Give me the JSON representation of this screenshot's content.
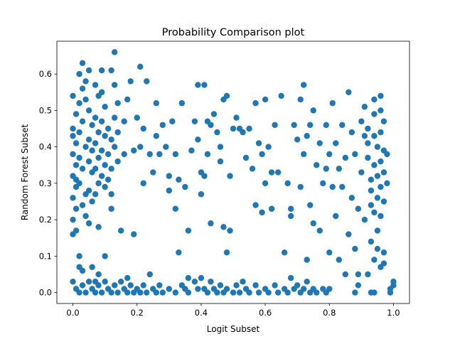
{
  "chart_data": {
    "type": "scatter",
    "title": "Probability Comparison plot",
    "xlabel": "Logit Subset",
    "ylabel": "Random Forest Subset",
    "xlim": [
      -0.05,
      1.05
    ],
    "ylim": [
      -0.03,
      0.69
    ],
    "xticks": [
      "0.0",
      "0.2",
      "0.4",
      "0.6",
      "0.8",
      "1.0"
    ],
    "yticks": [
      "0.0",
      "0.1",
      "0.2",
      "0.3",
      "0.4",
      "0.5",
      "0.6"
    ],
    "grid": false,
    "marker_color": "#1f77b4",
    "series": [
      {
        "points": [
          [
            0.0,
            0.54
          ],
          [
            0.01,
            0.49
          ],
          [
            0.0,
            0.45
          ],
          [
            0.01,
            0.41
          ],
          [
            0.0,
            0.38
          ],
          [
            0.01,
            0.35
          ],
          [
            0.0,
            0.32
          ],
          [
            0.01,
            0.29
          ],
          [
            0.0,
            0.26
          ],
          [
            0.01,
            0.23
          ],
          [
            0.0,
            0.2
          ],
          [
            0.01,
            0.17
          ],
          [
            0.0,
            0.16
          ],
          [
            0.0,
            0.43
          ],
          [
            0.01,
            0.31
          ],
          [
            0.02,
            0.6
          ],
          [
            0.03,
            0.63
          ],
          [
            0.03,
            0.56
          ],
          [
            0.02,
            0.52
          ],
          [
            0.04,
            0.58
          ],
          [
            0.03,
            0.47
          ],
          [
            0.02,
            0.44
          ],
          [
            0.04,
            0.4
          ],
          [
            0.02,
            0.37
          ],
          [
            0.03,
            0.34
          ],
          [
            0.02,
            0.3
          ],
          [
            0.04,
            0.27
          ],
          [
            0.03,
            0.24
          ],
          [
            0.05,
            0.61
          ],
          [
            0.04,
            0.53
          ],
          [
            0.05,
            0.5
          ],
          [
            0.06,
            0.46
          ],
          [
            0.05,
            0.42
          ],
          [
            0.06,
            0.39
          ],
          [
            0.05,
            0.36
          ],
          [
            0.06,
            0.33
          ],
          [
            0.05,
            0.28
          ],
          [
            0.06,
            0.25
          ],
          [
            0.04,
            0.21
          ],
          [
            0.05,
            0.19
          ],
          [
            0.07,
            0.57
          ],
          [
            0.08,
            0.54
          ],
          [
            0.07,
            0.48
          ],
          [
            0.08,
            0.44
          ],
          [
            0.07,
            0.41
          ],
          [
            0.08,
            0.37
          ],
          [
            0.07,
            0.34
          ],
          [
            0.08,
            0.3
          ],
          [
            0.07,
            0.27
          ],
          [
            0.09,
            0.55
          ],
          [
            0.1,
            0.51
          ],
          [
            0.09,
            0.47
          ],
          [
            0.1,
            0.43
          ],
          [
            0.09,
            0.39
          ],
          [
            0.1,
            0.35
          ],
          [
            0.09,
            0.32
          ],
          [
            0.1,
            0.29
          ],
          [
            0.11,
            0.45
          ],
          [
            0.12,
            0.42
          ],
          [
            0.11,
            0.38
          ],
          [
            0.12,
            0.34
          ],
          [
            0.11,
            0.31
          ],
          [
            0.12,
            0.27
          ],
          [
            0.12,
            0.23
          ],
          [
            0.13,
            0.66
          ],
          [
            0.12,
            0.61
          ],
          [
            0.13,
            0.57
          ],
          [
            0.14,
            0.52
          ],
          [
            0.13,
            0.48
          ],
          [
            0.14,
            0.44
          ],
          [
            0.13,
            0.4
          ],
          [
            0.14,
            0.36
          ],
          [
            0.15,
            0.17
          ],
          [
            0.16,
            0.47
          ],
          [
            0.16,
            0.38
          ],
          [
            0.09,
            0.61
          ],
          [
            0.1,
            0.1
          ],
          [
            0.06,
            0.07
          ],
          [
            0.02,
            0.1
          ],
          [
            0.03,
            0.06
          ],
          [
            0.07,
            0.03
          ],
          [
            0.08,
            0.18
          ],
          [
            0.17,
            0.53
          ],
          [
            0.18,
            0.58
          ],
          [
            0.19,
            0.16
          ],
          [
            0.19,
            0.39
          ],
          [
            0.2,
            0.48
          ],
          [
            0.21,
            0.62
          ],
          [
            0.21,
            0.4
          ],
          [
            0.22,
            0.45
          ],
          [
            0.22,
            0.3
          ],
          [
            0.23,
            0.58
          ],
          [
            0.24,
            0.38
          ],
          [
            0.25,
            0.33
          ],
          [
            0.26,
            0.43
          ],
          [
            0.26,
            0.52
          ],
          [
            0.27,
            0.38
          ],
          [
            0.28,
            0.46
          ],
          [
            0.29,
            0.4
          ],
          [
            0.3,
            0.32
          ],
          [
            0.3,
            0.28
          ],
          [
            0.31,
            0.47
          ],
          [
            0.32,
            0.38
          ],
          [
            0.32,
            0.23
          ],
          [
            0.33,
            0.31
          ],
          [
            0.33,
            0.11
          ],
          [
            0.34,
            0.52
          ],
          [
            0.35,
            0.29
          ],
          [
            0.36,
            0.17
          ],
          [
            0.37,
            0.39
          ],
          [
            0.38,
            0.47
          ],
          [
            0.39,
            0.42
          ],
          [
            0.39,
            0.57
          ],
          [
            0.4,
            0.33
          ],
          [
            0.4,
            0.27
          ],
          [
            0.41,
            0.57
          ],
          [
            0.41,
            0.32
          ],
          [
            0.42,
            0.47
          ],
          [
            0.42,
            0.38
          ],
          [
            0.43,
            0.46
          ],
          [
            0.43,
            0.19
          ],
          [
            0.44,
            0.49
          ],
          [
            0.45,
            0.44
          ],
          [
            0.46,
            0.4
          ],
          [
            0.46,
            0.36
          ],
          [
            0.47,
            0.53
          ],
          [
            0.47,
            0.18
          ],
          [
            0.48,
            0.11
          ],
          [
            0.48,
            0.54
          ],
          [
            0.49,
            0.32
          ],
          [
            0.49,
            0.17
          ],
          [
            0.5,
            0.45
          ],
          [
            0.51,
            0.48
          ],
          [
            0.52,
            0.45
          ],
          [
            0.53,
            0.44
          ],
          [
            0.54,
            0.37
          ],
          [
            0.55,
            0.45
          ],
          [
            0.56,
            0.34
          ],
          [
            0.57,
            0.24
          ],
          [
            0.57,
            0.52
          ],
          [
            0.58,
            0.41
          ],
          [
            0.59,
            0.38
          ],
          [
            0.59,
            0.22
          ],
          [
            0.6,
            0.53
          ],
          [
            0.6,
            0.3
          ],
          [
            0.61,
            0.4
          ],
          [
            0.62,
            0.33
          ],
          [
            0.62,
            0.23
          ],
          [
            0.63,
            0.46
          ],
          [
            0.64,
            0.33
          ],
          [
            0.65,
            0.54
          ],
          [
            0.66,
            0.11
          ],
          [
            0.67,
            0.3
          ],
          [
            0.68,
            0.21
          ],
          [
            0.68,
            0.23
          ],
          [
            0.69,
            0.46
          ],
          [
            0.7,
            0.42
          ],
          [
            0.71,
            0.53
          ],
          [
            0.71,
            0.29
          ],
          [
            0.72,
            0.57
          ],
          [
            0.72,
            0.38
          ],
          [
            0.73,
            0.43
          ],
          [
            0.73,
            0.09
          ],
          [
            0.74,
            0.46
          ],
          [
            0.74,
            0.24
          ],
          [
            0.75,
            0.5
          ],
          [
            0.75,
            0.19
          ],
          [
            0.76,
            0.35
          ],
          [
            0.77,
            0.41
          ],
          [
            0.77,
            0.17
          ],
          [
            0.78,
            0.3
          ],
          [
            0.79,
            0.46
          ],
          [
            0.79,
            0.34
          ],
          [
            0.8,
            0.38
          ],
          [
            0.8,
            0.11
          ],
          [
            0.81,
            0.29
          ],
          [
            0.81,
            0.52
          ],
          [
            0.82,
            0.41
          ],
          [
            0.82,
            0.21
          ],
          [
            0.83,
            0.34
          ],
          [
            0.83,
            0.09
          ],
          [
            0.84,
            0.46
          ],
          [
            0.84,
            0.29
          ],
          [
            0.85,
            0.05
          ],
          [
            0.85,
            0.37
          ],
          [
            0.86,
            0.55
          ],
          [
            0.86,
            0.16
          ],
          [
            0.87,
            0.44
          ],
          [
            0.87,
            0.26
          ],
          [
            0.88,
            0.12
          ],
          [
            0.88,
            0.38
          ],
          [
            0.89,
            0.23
          ],
          [
            0.89,
            0.02
          ],
          [
            0.9,
            0.47
          ],
          [
            0.9,
            0.33
          ],
          [
            0.91,
            0.51
          ],
          [
            0.91,
            0.2
          ],
          [
            0.92,
            0.45
          ],
          [
            0.92,
            0.41
          ],
          [
            0.92,
            0.37
          ],
          [
            0.93,
            0.31
          ],
          [
            0.93,
            0.28
          ],
          [
            0.93,
            0.24
          ],
          [
            0.93,
            0.14
          ],
          [
            0.94,
            0.53
          ],
          [
            0.94,
            0.49
          ],
          [
            0.94,
            0.43
          ],
          [
            0.94,
            0.35
          ],
          [
            0.94,
            0.22
          ],
          [
            0.94,
            0.09
          ],
          [
            0.95,
            0.4
          ],
          [
            0.95,
            0.32
          ],
          [
            0.95,
            0.26
          ],
          [
            0.95,
            0.17
          ],
          [
            0.95,
            0.12
          ],
          [
            0.96,
            0.5
          ],
          [
            0.96,
            0.44
          ],
          [
            0.96,
            0.36
          ],
          [
            0.96,
            0.29
          ],
          [
            0.96,
            0.21
          ],
          [
            0.96,
            0.07
          ],
          [
            0.97,
            0.47
          ],
          [
            0.97,
            0.39
          ],
          [
            0.97,
            0.33
          ],
          [
            0.97,
            0.25
          ],
          [
            0.92,
            0.05
          ],
          [
            0.93,
            0.0
          ],
          [
            0.88,
            0.0
          ],
          [
            0.89,
            0.05
          ],
          [
            0.96,
            0.54
          ],
          [
            0.94,
            0.0
          ],
          [
            0.99,
            0.01
          ],
          [
            1.0,
            0.02
          ],
          [
            1.0,
            0.03
          ],
          [
            0.99,
            0.0
          ],
          [
            0.97,
            0.11
          ],
          [
            0.98,
            0.3
          ],
          [
            0.98,
            0.38
          ],
          [
            0.97,
            0.08
          ],
          [
            0.91,
            0.43
          ],
          [
            0.0,
            0.03
          ],
          [
            0.01,
            0.01
          ],
          [
            0.02,
            0.0
          ],
          [
            0.03,
            0.02
          ],
          [
            0.04,
            0.0
          ],
          [
            0.05,
            0.03
          ],
          [
            0.06,
            0.01
          ],
          [
            0.07,
            0.0
          ],
          [
            0.08,
            0.02
          ],
          [
            0.09,
            0.0
          ],
          [
            0.1,
            0.03
          ],
          [
            0.11,
            0.01
          ],
          [
            0.12,
            0.0
          ],
          [
            0.13,
            0.02
          ],
          [
            0.14,
            0.0
          ],
          [
            0.15,
            0.03
          ],
          [
            0.16,
            0.01
          ],
          [
            0.17,
            0.0
          ],
          [
            0.18,
            0.02
          ],
          [
            0.19,
            0.0
          ],
          [
            0.2,
            0.01
          ],
          [
            0.21,
            0.0
          ],
          [
            0.22,
            0.02
          ],
          [
            0.23,
            0.0
          ],
          [
            0.24,
            0.05
          ],
          [
            0.25,
            0.01
          ],
          [
            0.26,
            0.0
          ],
          [
            0.27,
            0.02
          ],
          [
            0.28,
            0.0
          ],
          [
            0.3,
            0.01
          ],
          [
            0.32,
            0.0
          ],
          [
            0.34,
            0.02
          ],
          [
            0.35,
            0.01
          ],
          [
            0.36,
            0.0
          ],
          [
            0.38,
            0.03
          ],
          [
            0.39,
            0.01
          ],
          [
            0.4,
            0.04
          ],
          [
            0.41,
            0.01
          ],
          [
            0.42,
            0.0
          ],
          [
            0.43,
            0.03
          ],
          [
            0.44,
            0.01
          ],
          [
            0.45,
            0.0
          ],
          [
            0.46,
            0.02
          ],
          [
            0.47,
            0.0
          ],
          [
            0.48,
            0.01
          ],
          [
            0.5,
            0.0
          ],
          [
            0.51,
            0.02
          ],
          [
            0.52,
            0.0
          ],
          [
            0.54,
            0.01
          ],
          [
            0.55,
            0.0
          ],
          [
            0.57,
            0.02
          ],
          [
            0.58,
            0.0
          ],
          [
            0.6,
            0.01
          ],
          [
            0.61,
            0.0
          ],
          [
            0.63,
            0.02
          ],
          [
            0.64,
            0.0
          ],
          [
            0.66,
            0.01
          ],
          [
            0.67,
            0.0
          ],
          [
            0.69,
            0.01
          ],
          [
            0.7,
            0.02
          ],
          [
            0.71,
            0.0
          ],
          [
            0.72,
            0.01
          ],
          [
            0.73,
            0.03
          ],
          [
            0.74,
            0.0
          ],
          [
            0.75,
            0.01
          ],
          [
            0.76,
            0.0
          ],
          [
            0.78,
            0.01
          ],
          [
            0.79,
            0.0
          ],
          [
            0.8,
            0.01
          ],
          [
            0.68,
            0.04
          ],
          [
            0.36,
            0.04
          ],
          [
            0.53,
            0.03
          ],
          [
            0.17,
            0.04
          ],
          [
            0.02,
            0.07
          ],
          [
            0.08,
            0.05
          ]
        ]
      }
    ]
  }
}
